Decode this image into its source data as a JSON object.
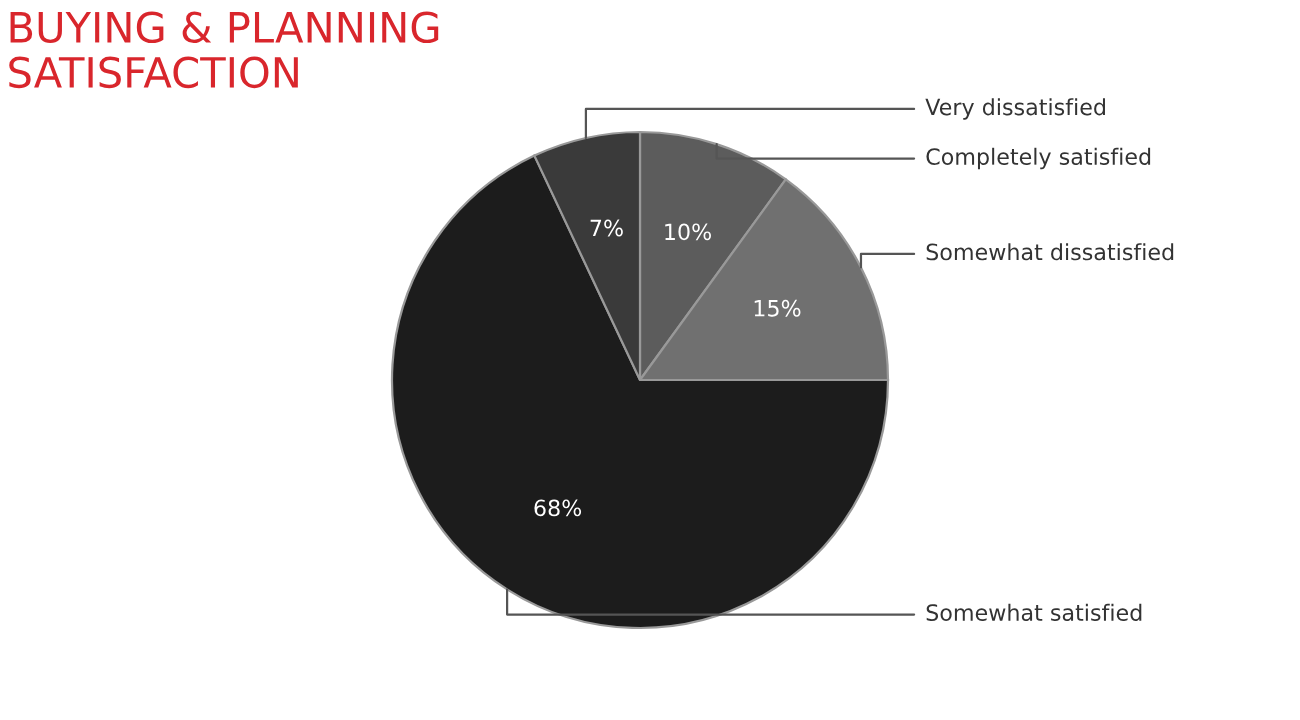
{
  "chart_data": {
    "type": "pie",
    "title": "BUYING & PLANNING\nSATISFACTION",
    "categories": [
      "Completely satisfied",
      "Somewhat dissatisfied",
      "Somewhat satisfied",
      "Very dissatisfied"
    ],
    "values": [
      10,
      15,
      68,
      7
    ],
    "colors": [
      "#5c5c5c",
      "#707070",
      "#1c1c1c",
      "#3a3a3a"
    ],
    "value_labels": [
      "10%",
      "15%",
      "68%",
      "7%"
    ],
    "legend": false
  }
}
